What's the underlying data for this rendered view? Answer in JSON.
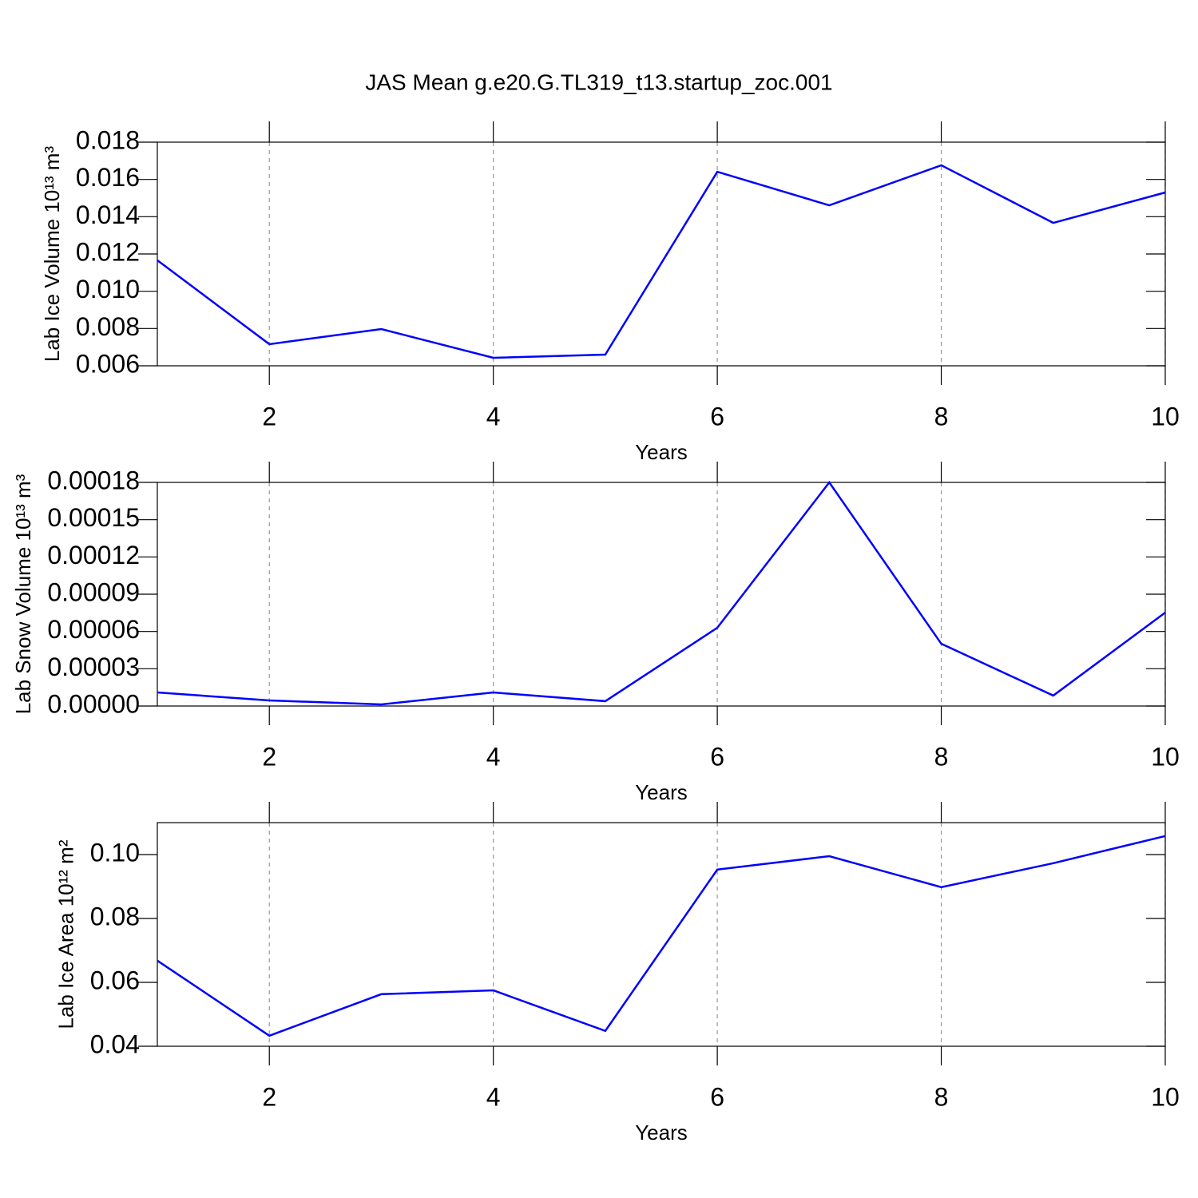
{
  "chart_data": [
    {
      "type": "line",
      "title": "JAS Mean g.e20.G.TL319_t13.startup_zoc.001",
      "ylabel": "Lab Ice Volume 10¹³ m³",
      "xlabel": "Years",
      "x": [
        1,
        2,
        3,
        4,
        5,
        6,
        7,
        8,
        9,
        10
      ],
      "series": [
        {
          "color": "#0000ff",
          "values": [
            0.01166,
            0.00716,
            0.00797,
            0.00643,
            0.0066,
            0.01641,
            0.01461,
            0.01676,
            0.01367,
            0.0153
          ]
        }
      ],
      "xlim": [
        1,
        10
      ],
      "xticks": [
        2,
        4,
        6,
        8,
        10
      ],
      "ylim": [
        0.006,
        0.018
      ],
      "yticks": [
        {
          "value": 0.006,
          "label": "0.006"
        },
        {
          "value": 0.008,
          "label": "0.008"
        },
        {
          "value": 0.01,
          "label": "0.010"
        },
        {
          "value": 0.012,
          "label": "0.012"
        },
        0.014,
        0.016,
        0.018
      ],
      "xgrid": true
    },
    {
      "type": "line",
      "ylabel": "Lab Snow Volume 10¹³ m³",
      "xlabel": "Years",
      "x": [
        1,
        2,
        3,
        4,
        5,
        6,
        7,
        8,
        9,
        10
      ],
      "series": [
        {
          "color": "#0000ff",
          "values": [
            1.09e-05,
            4.5e-06,
            1.3e-06,
            1.09e-05,
            3.9e-06,
            6.3e-05,
            0.00018,
            5.01e-05,
            8.4e-06,
            7.52e-05
          ]
        }
      ],
      "xlim": [
        1,
        10
      ],
      "xticks": [
        2,
        4,
        6,
        8,
        10
      ],
      "ylim": [
        0,
        0.00018
      ],
      "yticks": [
        {
          "value": 0,
          "label": "0.00000"
        },
        {
          "value": 3e-05,
          "label": "0.00003"
        },
        {
          "value": 6e-05,
          "label": "0.00006"
        },
        {
          "value": 9e-05,
          "label": "0.00009"
        },
        {
          "value": 0.00012,
          "label": "0.00012"
        },
        {
          "value": 0.00015,
          "label": "0.00015"
        },
        {
          "value": 0.00018,
          "label": "0.00018"
        }
      ],
      "xgrid": true
    },
    {
      "type": "line",
      "ylabel": "Lab Ice Area 10¹² m²",
      "xlabel": "Years",
      "x": [
        1,
        2,
        3,
        4,
        5,
        6,
        7,
        8,
        9,
        10
      ],
      "series": [
        {
          "color": "#0000ff",
          "values": [
            0.0668,
            0.0433,
            0.0563,
            0.0575,
            0.0448,
            0.0953,
            0.0995,
            0.0898,
            0.0973,
            0.1058
          ]
        }
      ],
      "xlim": [
        1,
        10
      ],
      "xticks": [
        2,
        4,
        6,
        8,
        10
      ],
      "ylim": [
        0.04,
        0.11
      ],
      "yticks": [
        0.04,
        0.06,
        0.08,
        {
          "value": 0.1,
          "label": "0.10"
        }
      ],
      "xgrid": true
    }
  ]
}
